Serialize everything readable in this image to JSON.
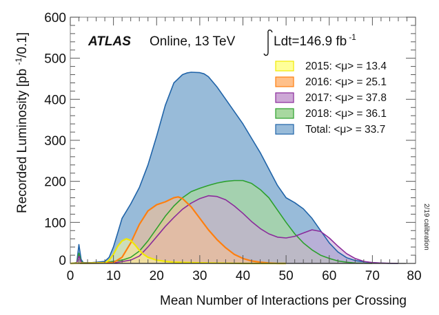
{
  "chart_data": {
    "type": "area",
    "title": "",
    "experiment_label": "ATLAS",
    "subtitle": "Online, 13 TeV",
    "luminosity_label": "Ldt=146.9 fb",
    "luminosity_exponent": "-1",
    "side_note": "2/19 calibration",
    "xlabel": "Mean Number of Interactions per Crossing",
    "ylabel": "Recorded Luminosity [pb ",
    "ylabel_exponent": "-1",
    "ylabel_suffix": "/0.1]",
    "xlim": [
      0,
      80
    ],
    "ylim": [
      0,
      600
    ],
    "xticks": [
      "0",
      "10",
      "20",
      "30",
      "40",
      "50",
      "60",
      "70",
      "80"
    ],
    "yticks": [
      "0",
      "100",
      "200",
      "300",
      "400",
      "500",
      "600"
    ],
    "grid": false,
    "legend_position": "top-right",
    "series": [
      {
        "name": "Total",
        "legend": "Total: <μ> = 33.7",
        "fill": "#98bbd9",
        "stroke": "#1f63a8",
        "x": [
          0,
          1.5,
          2,
          2.5,
          3,
          5,
          8,
          9,
          10,
          11,
          12,
          14,
          16,
          18,
          20,
          22,
          24,
          26,
          27,
          28,
          30,
          31,
          32,
          34,
          36,
          38,
          40,
          42,
          44,
          46,
          48,
          50,
          52,
          54,
          56,
          58,
          60,
          62,
          64,
          66,
          68,
          70,
          72,
          74,
          76
        ],
        "y": [
          0,
          2,
          46,
          10,
          2,
          2,
          5,
          15,
          40,
          75,
          110,
          145,
          185,
          240,
          310,
          385,
          440,
          460,
          464,
          466,
          465,
          462,
          455,
          430,
          400,
          370,
          340,
          305,
          270,
          230,
          190,
          160,
          148,
          133,
          110,
          80,
          50,
          28,
          14,
          7,
          4,
          2,
          1,
          0,
          0
        ]
      },
      {
        "name": "2018",
        "legend": "2018: <μ> = 36.1",
        "fill": "#a8d8a0",
        "stroke": "#2ca02c",
        "x": [
          0,
          1.5,
          2,
          2.5,
          3,
          8,
          12,
          14,
          16,
          18,
          20,
          22,
          24,
          26,
          28,
          30,
          32,
          34,
          36,
          38,
          40,
          42,
          44,
          46,
          48,
          50,
          52,
          54,
          56,
          58,
          60,
          62,
          64,
          66,
          70
        ],
        "y": [
          0,
          2,
          25,
          5,
          1,
          2,
          8,
          15,
          30,
          55,
          85,
          115,
          140,
          160,
          175,
          183,
          190,
          196,
          200,
          202,
          202,
          195,
          180,
          160,
          130,
          100,
          72,
          50,
          33,
          20,
          12,
          6,
          3,
          1,
          0
        ]
      },
      {
        "name": "2017",
        "legend": "2017: <μ> = 37.8",
        "fill": "#cda8d6",
        "stroke": "#8a2a9a",
        "x": [
          0,
          1.5,
          2,
          2.5,
          3,
          10,
          14,
          16,
          18,
          20,
          22,
          24,
          26,
          28,
          30,
          32,
          34,
          36,
          38,
          40,
          42,
          44,
          46,
          48,
          50,
          52,
          54,
          56,
          58,
          60,
          62,
          64,
          66,
          68,
          70,
          72,
          76
        ],
        "y": [
          0,
          1,
          18,
          3,
          0,
          1,
          8,
          18,
          40,
          65,
          90,
          112,
          132,
          147,
          158,
          165,
          163,
          155,
          140,
          122,
          102,
          85,
          72,
          64,
          62,
          66,
          74,
          82,
          78,
          62,
          42,
          24,
          12,
          5,
          2,
          1,
          0
        ]
      },
      {
        "name": "2016",
        "legend": "2016: <μ> = 25.1",
        "fill": "#ffc08a",
        "stroke": "#ff7f0e",
        "x": [
          0,
          10,
          12,
          14,
          16,
          18,
          20,
          22,
          24,
          25,
          26,
          28,
          30,
          32,
          34,
          36,
          38,
          40,
          42,
          44,
          46,
          48,
          50
        ],
        "y": [
          0,
          2,
          15,
          50,
          95,
          128,
          143,
          150,
          160,
          162,
          158,
          138,
          110,
          82,
          58,
          38,
          22,
          12,
          6,
          3,
          1,
          0,
          0
        ]
      },
      {
        "name": "2015",
        "legend": "2015: <μ> = 13.4",
        "fill": "#ffff99",
        "stroke": "#f0e800",
        "x": [
          0,
          8,
          9,
          10,
          11,
          12,
          13,
          14,
          15,
          16,
          17,
          18,
          20,
          22,
          24,
          28,
          32,
          40,
          50
        ],
        "y": [
          0,
          1,
          8,
          22,
          42,
          55,
          60,
          56,
          45,
          32,
          22,
          15,
          8,
          5,
          3,
          2,
          1,
          0,
          0
        ]
      }
    ],
    "legend_order": [
      "2015",
      "2016",
      "2017",
      "2018",
      "Total"
    ]
  }
}
